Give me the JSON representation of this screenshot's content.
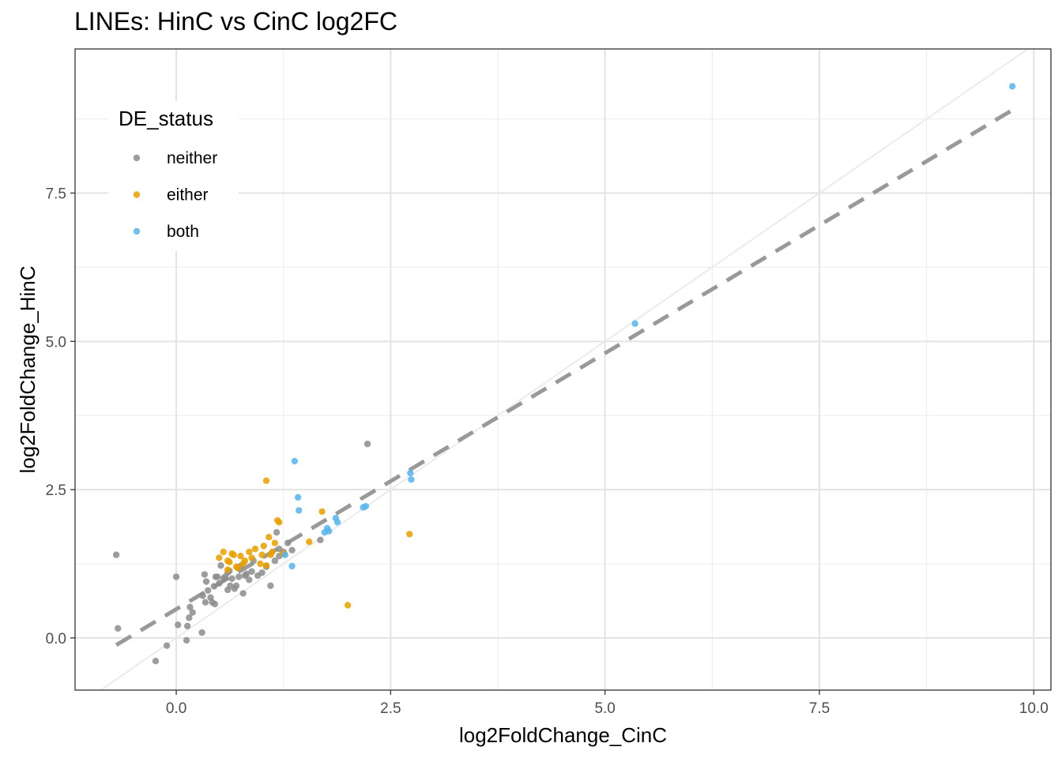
{
  "chart_data": {
    "type": "scatter",
    "title": "LINEs: HinC vs CinC log2FC",
    "xlabel": "log2FoldChange_CinC",
    "ylabel": "log2FoldChange_HinC",
    "xlim": [
      -1.18,
      10.2
    ],
    "ylim": [
      -0.88,
      9.93
    ],
    "x_ticks": [
      0.0,
      2.5,
      5.0,
      7.5,
      10.0
    ],
    "x_tick_labels": [
      "0.0",
      "2.5",
      "5.0",
      "7.5",
      "10.0"
    ],
    "y_ticks": [
      0.0,
      2.5,
      5.0,
      7.5
    ],
    "y_tick_labels": [
      "0.0",
      "2.5",
      "5.0",
      "7.5"
    ],
    "grid": true,
    "legend": {
      "title": "DE_status",
      "placement": "top-left inside",
      "entries": [
        "neither",
        "either",
        "both"
      ]
    },
    "colors": {
      "neither": "#8c8c8c",
      "either": "#e69f00",
      "both": "#56b4e9"
    },
    "identity_line": {
      "slope": 1,
      "intercept": 0,
      "color": "#ebebeb"
    },
    "fit_line": {
      "x": [
        -0.7,
        9.75
      ],
      "y": [
        -0.12,
        8.9
      ],
      "style": "dashed",
      "color": "#999999"
    },
    "series": [
      {
        "name": "neither",
        "x": [
          -0.7,
          -0.68,
          -0.24,
          -0.11,
          0.0,
          0.02,
          0.12,
          0.13,
          0.15,
          0.16,
          0.19,
          0.3,
          0.31,
          0.33,
          0.34,
          0.35,
          0.37,
          0.4,
          0.42,
          0.44,
          0.45,
          0.46,
          0.48,
          0.5,
          0.52,
          0.55,
          0.57,
          0.6,
          0.6,
          0.62,
          0.63,
          0.65,
          0.68,
          0.7,
          0.72,
          0.73,
          0.75,
          0.78,
          0.8,
          0.82,
          0.85,
          0.88,
          0.9,
          0.95,
          1.0,
          1.05,
          1.1,
          1.15,
          1.17,
          1.2,
          1.2,
          1.25,
          1.3,
          1.35,
          1.68,
          2.23
        ],
        "y": [
          1.4,
          0.16,
          -0.39,
          -0.13,
          1.03,
          0.22,
          -0.04,
          0.2,
          0.34,
          0.52,
          0.43,
          0.09,
          0.71,
          1.07,
          0.6,
          0.95,
          0.8,
          0.68,
          0.6,
          0.87,
          0.57,
          1.03,
          1.03,
          0.92,
          1.22,
          1.0,
          1.03,
          0.81,
          1.1,
          1.13,
          0.88,
          1.0,
          0.83,
          0.88,
          1.18,
          1.03,
          1.21,
          0.75,
          1.05,
          1.08,
          0.98,
          1.12,
          1.3,
          1.05,
          1.1,
          1.2,
          0.88,
          1.3,
          1.78,
          1.5,
          1.38,
          1.45,
          1.6,
          1.48,
          1.65,
          3.27
        ]
      },
      {
        "name": "either",
        "x": [
          0.5,
          0.55,
          0.6,
          0.6,
          0.62,
          0.65,
          0.67,
          0.7,
          0.72,
          0.75,
          0.78,
          0.8,
          0.85,
          0.88,
          0.92,
          0.98,
          1.0,
          1.02,
          1.05,
          1.05,
          1.08,
          1.1,
          1.12,
          1.15,
          1.18,
          1.2,
          1.25,
          1.55,
          1.7,
          2.0,
          2.72
        ],
        "y": [
          1.35,
          1.45,
          1.3,
          1.15,
          1.28,
          1.42,
          1.4,
          1.2,
          1.18,
          1.38,
          1.25,
          1.3,
          1.45,
          1.35,
          1.5,
          1.25,
          1.4,
          1.55,
          1.22,
          2.65,
          1.7,
          1.4,
          1.45,
          1.6,
          1.98,
          1.95,
          1.42,
          1.62,
          2.13,
          0.55,
          1.75
        ]
      },
      {
        "name": "both",
        "x": [
          1.27,
          1.35,
          1.38,
          1.42,
          1.43,
          1.73,
          1.76,
          1.78,
          1.86,
          1.88,
          2.18,
          2.21,
          2.73,
          2.74,
          5.35,
          9.75
        ],
        "y": [
          1.4,
          1.21,
          2.98,
          2.37,
          2.15,
          1.78,
          1.85,
          1.8,
          2.02,
          1.95,
          2.2,
          2.22,
          2.78,
          2.67,
          5.3,
          9.3
        ]
      }
    ]
  }
}
